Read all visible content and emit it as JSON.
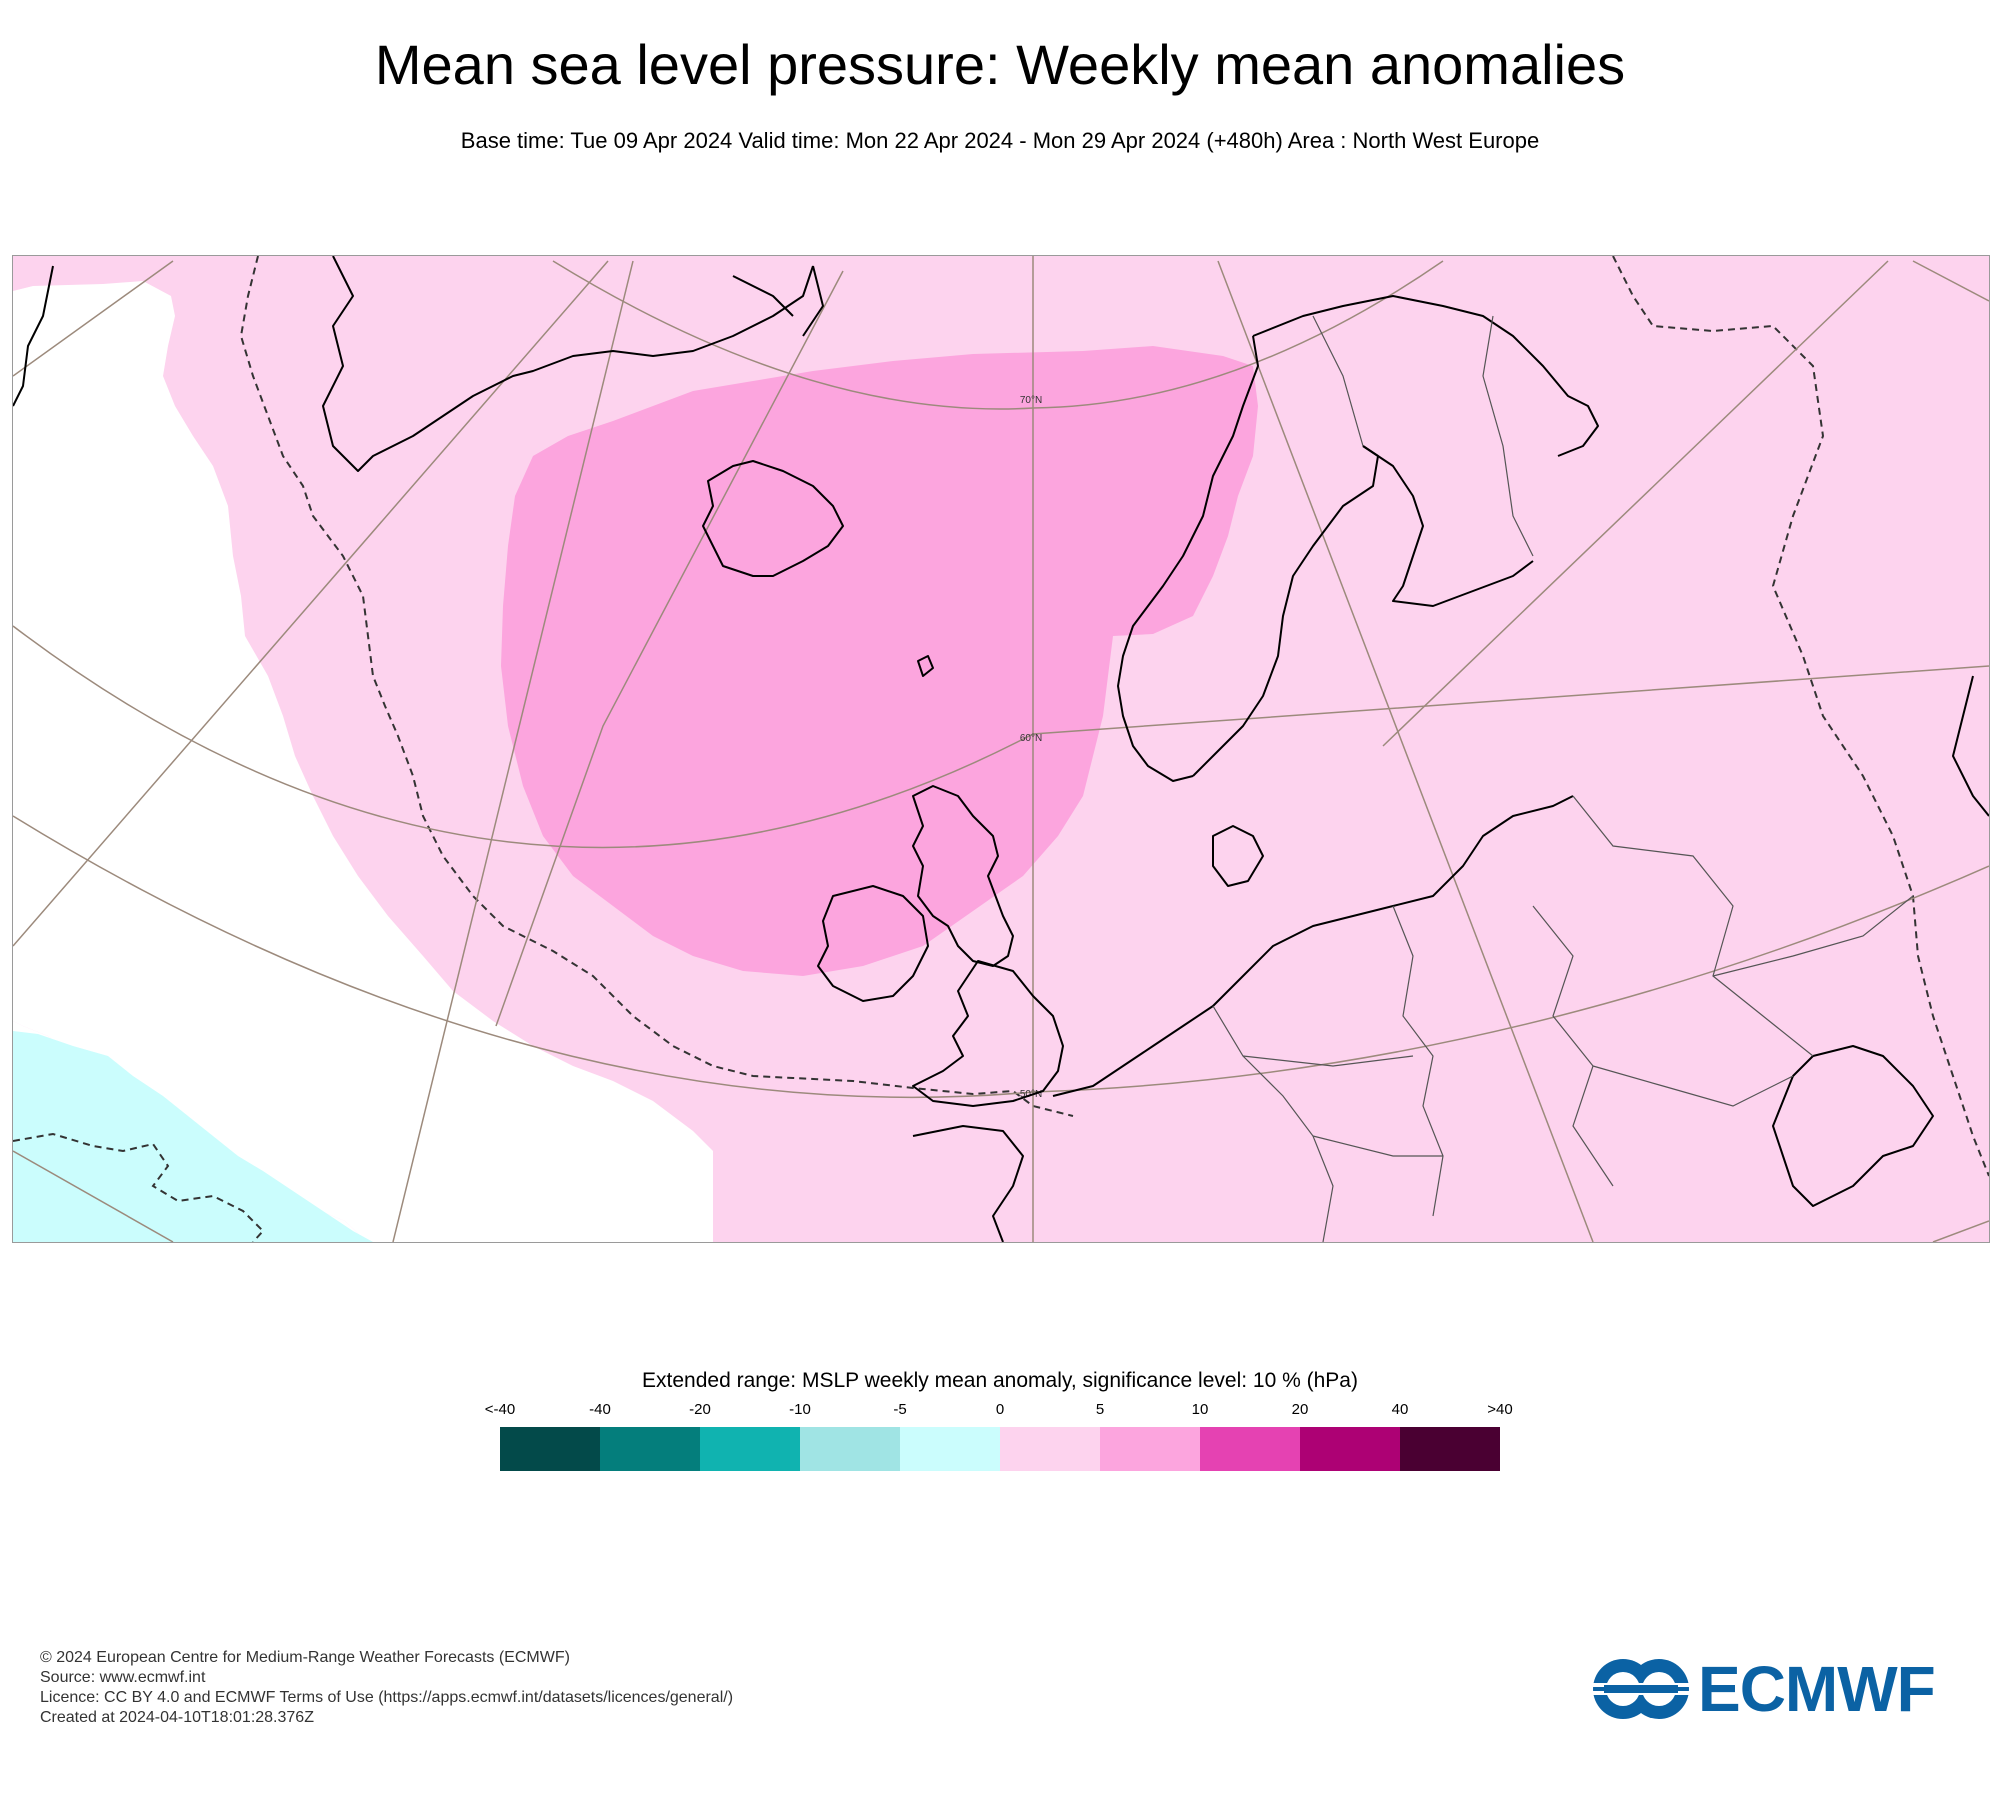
{
  "title": "Mean sea level pressure: Weekly mean anomalies",
  "subtitle": "Base time: Tue 09 Apr 2024 Valid time: Mon 22 Apr 2024 - Mon 29 Apr 2024 (+480h) Area : North West Europe",
  "map": {
    "area": "North West Europe",
    "latitude_labels": [
      "70°N",
      "60°N",
      "50°N"
    ],
    "dashed_contour": "significance level 10 %",
    "regions": [
      {
        "name": "weak-positive-anomaly",
        "range": "0 to 5 hPa",
        "color": "#fdd3ee"
      },
      {
        "name": "moderate-positive-anomaly",
        "range": "5 to 10 hPa",
        "color": "#fca5de"
      },
      {
        "name": "weak-negative-anomaly",
        "range": "-5 to 0 hPa",
        "color": "#cbfdfd"
      }
    ],
    "colors": {
      "land_outline": "#000000",
      "graticule": "#9c8a7c",
      "significance_contour": "#333333"
    }
  },
  "legend": {
    "title": "Extended range: MSLP weekly mean anomaly, significance level: 10 % (hPa)",
    "ticks": [
      "<-40",
      "-40",
      "-20",
      "-10",
      "-5",
      "0",
      "5",
      "10",
      "20",
      "40",
      ">40"
    ],
    "colors": [
      "#034a4a",
      "#047e7c",
      "#10b3b0",
      "#a0e4e4",
      "#cbfdfd",
      "#fdd3ee",
      "#fca5de",
      "#e542b2",
      "#ad0174",
      "#4a0032"
    ]
  },
  "footer": {
    "line1": "© 2024 European Centre for Medium-Range Weather Forecasts (ECMWF)",
    "line2": "Source: www.ecmwf.int",
    "line3": "Licence: CC BY 4.0 and ECMWF Terms of Use (https://apps.ecmwf.int/datasets/licences/general/)",
    "line4": "Created at 2024-04-10T18:01:28.376Z"
  },
  "logo": {
    "text": "ECMWF",
    "color": "#0b62a4"
  }
}
